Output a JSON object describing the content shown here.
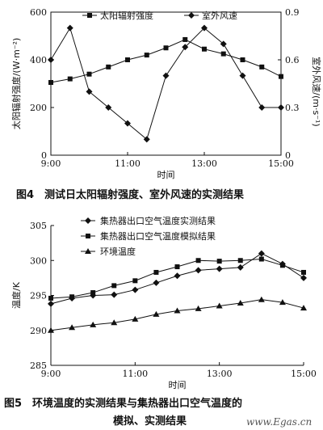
{
  "chart_data": [
    {
      "type": "line",
      "caption": "图4　测试日太阳辐射强度、室外风速的实测结果",
      "xlabel": "时间",
      "ylabel_left": "太阳辐射强度/(W·m⁻²)",
      "ylabel_right": "室外风速/(m·s⁻¹)",
      "x_ticks": [
        "9:00",
        "11:00",
        "13:00",
        "15:00"
      ],
      "x_range": [
        9,
        15
      ],
      "y_left_ticks": [
        "0",
        "200",
        "400",
        "600"
      ],
      "y_left_range": [
        0,
        600
      ],
      "y_right_ticks": [
        "0",
        "0.3",
        "0.6",
        "0.9"
      ],
      "y_right_range": [
        0,
        0.9
      ],
      "legend_position": "top",
      "series": [
        {
          "name": "太阳辐射强度",
          "marker": "square",
          "axis": "left",
          "x": [
            9,
            9.5,
            10,
            10.5,
            11,
            11.5,
            12,
            12.5,
            13,
            13.5,
            14,
            14.5,
            15
          ],
          "values": [
            305,
            320,
            340,
            370,
            400,
            420,
            450,
            485,
            445,
            425,
            400,
            370,
            330
          ]
        },
        {
          "name": "室外风速",
          "marker": "diamond",
          "axis": "right",
          "x": [
            9,
            9.5,
            10,
            10.5,
            11,
            11.5,
            12,
            12.5,
            13,
            13.5,
            14,
            14.5,
            15
          ],
          "values": [
            0.6,
            0.8,
            0.4,
            0.3,
            0.2,
            0.1,
            0.5,
            0.68,
            0.8,
            0.7,
            0.5,
            0.3,
            0.3
          ]
        }
      ]
    },
    {
      "type": "line",
      "caption": "图5　环境温度的实测结果与集热器出口空气温度的",
      "caption2": "模拟、实测结果",
      "xlabel": "时间",
      "ylabel": "温度/K",
      "x_ticks": [
        "9:00",
        "11:00",
        "13:00",
        "15:00"
      ],
      "x_range": [
        9,
        15
      ],
      "y_ticks": [
        "285",
        "290",
        "295",
        "300",
        "305"
      ],
      "y_range": [
        285,
        305
      ],
      "legend_position": "top-left",
      "series": [
        {
          "name": "集热器出口空气温度实测结果",
          "marker": "diamond",
          "x": [
            9,
            9.5,
            10,
            10.5,
            11,
            11.5,
            12,
            12.5,
            13,
            13.5,
            14,
            14.5,
            15
          ],
          "values": [
            293.8,
            294.6,
            295.0,
            295.1,
            295.8,
            296.8,
            297.8,
            298.6,
            298.8,
            299.0,
            301.0,
            299.5,
            297.5
          ]
        },
        {
          "name": "集热器出口空气温度模拟结果",
          "marker": "square",
          "x": [
            9,
            9.5,
            10,
            10.5,
            11,
            11.5,
            12,
            12.5,
            13,
            13.5,
            14,
            14.5,
            15
          ],
          "values": [
            294.6,
            294.8,
            295.4,
            296.4,
            297.1,
            298.3,
            299.1,
            300.0,
            299.9,
            300.0,
            300.2,
            299.3,
            298.3
          ]
        },
        {
          "name": "环境温度",
          "marker": "triangle",
          "x": [
            9,
            9.5,
            10,
            10.5,
            11,
            11.5,
            12,
            12.5,
            13,
            13.5,
            14,
            14.5,
            15
          ],
          "values": [
            290.0,
            290.4,
            290.8,
            291.1,
            291.6,
            292.3,
            292.8,
            293.1,
            293.5,
            293.9,
            294.4,
            294.0,
            293.2
          ]
        }
      ]
    }
  ],
  "watermark": "www.Egas.cn"
}
